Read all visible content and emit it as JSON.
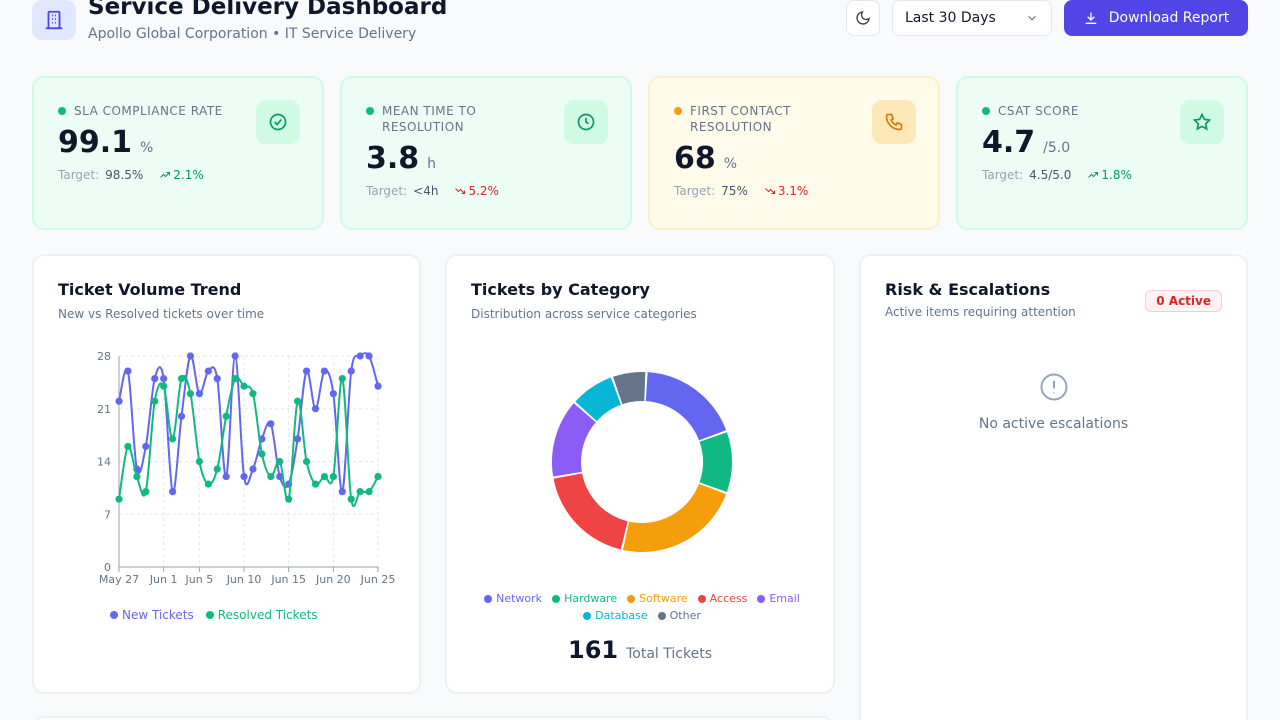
{
  "header": {
    "title": "Service Delivery Dashboard",
    "subtitle": "Apollo Global Corporation • IT Service Delivery",
    "date_range": "Last 30 Days",
    "download_label": "Download Report"
  },
  "kpis": [
    {
      "label": "SLA COMPLIANCE RATE",
      "value": "99.1",
      "unit": "%",
      "target_label": "Target:",
      "target": "98.5%",
      "trend": "2.1%",
      "trend_dir": "up",
      "icon": "check-circle-icon",
      "accent": "#10b981"
    },
    {
      "label": "MEAN TIME TO RESOLUTION",
      "value": "3.8",
      "unit": "h",
      "target_label": "Target:",
      "target": "<4h",
      "trend": "5.2%",
      "trend_dir": "down",
      "icon": "clock-icon",
      "accent": "#10b981"
    },
    {
      "label": "FIRST CONTACT RESOLUTION",
      "value": "68",
      "unit": "%",
      "target_label": "Target:",
      "target": "75%",
      "trend": "3.1%",
      "trend_dir": "down",
      "icon": "phone-icon",
      "accent": "#f59e0b"
    },
    {
      "label": "CSAT SCORE",
      "value": "4.7",
      "unit": "/5.0",
      "target_label": "Target:",
      "target": "4.5/5.0",
      "trend": "1.8%",
      "trend_dir": "up",
      "icon": "star-icon",
      "accent": "#10b981"
    }
  ],
  "volume": {
    "title": "Ticket Volume Trend",
    "subtitle": "New vs Resolved tickets over time"
  },
  "category": {
    "title": "Tickets by Category",
    "subtitle": "Distribution across service categories",
    "total": "161",
    "total_label": "Total Tickets"
  },
  "risk": {
    "title": "Risk & Escalations",
    "subtitle": "Active items requiring attention",
    "badge": "0 Active",
    "empty_text": "No active escalations"
  },
  "chart_data": [
    {
      "type": "line",
      "x": [
        "May 27",
        "May 28",
        "May 29",
        "May 30",
        "May 31",
        "Jun 1",
        "Jun 2",
        "Jun 3",
        "Jun 4",
        "Jun 5",
        "Jun 6",
        "Jun 7",
        "Jun 8",
        "Jun 9",
        "Jun 10",
        "Jun 11",
        "Jun 12",
        "Jun 13",
        "Jun 14",
        "Jun 15",
        "Jun 16",
        "Jun 17",
        "Jun 18",
        "Jun 19",
        "Jun 20",
        "Jun 21",
        "Jun 22",
        "Jun 23",
        "Jun 24",
        "Jun 25"
      ],
      "x_ticks": [
        "May 27",
        "Jun 1",
        "Jun 5",
        "Jun 10",
        "Jun 15",
        "Jun 20",
        "Jun 25"
      ],
      "series": [
        {
          "name": "New Tickets",
          "color": "#6366f1",
          "values": [
            22,
            26,
            13,
            16,
            25,
            25,
            10,
            20,
            28,
            23,
            26,
            25,
            12,
            28,
            12,
            13,
            17,
            19,
            12,
            11,
            17,
            26,
            21,
            26,
            23,
            10,
            26,
            28,
            28,
            24
          ]
        },
        {
          "name": "Resolved Tickets",
          "color": "#10b981",
          "values": [
            9,
            16,
            12,
            10,
            22,
            24,
            17,
            25,
            23,
            14,
            11,
            13,
            20,
            25,
            24,
            23,
            15,
            12,
            14,
            9,
            22,
            14,
            11,
            12,
            12,
            25,
            9,
            10,
            10,
            12
          ]
        }
      ],
      "ylim": [
        0,
        28
      ],
      "y_ticks": [
        0,
        7,
        14,
        21,
        28
      ],
      "grid": true,
      "legend": "bottom"
    },
    {
      "type": "pie",
      "donut": true,
      "categories": [
        "Network",
        "Hardware",
        "Software",
        "Access",
        "Email",
        "Database",
        "Other"
      ],
      "values": [
        30,
        18,
        37,
        30,
        23,
        13,
        10
      ],
      "colors": [
        "#6366f1",
        "#10b981",
        "#f59e0b",
        "#ef4444",
        "#8b5cf6",
        "#06b6d4",
        "#64748b"
      ],
      "legend": "bottom"
    }
  ]
}
